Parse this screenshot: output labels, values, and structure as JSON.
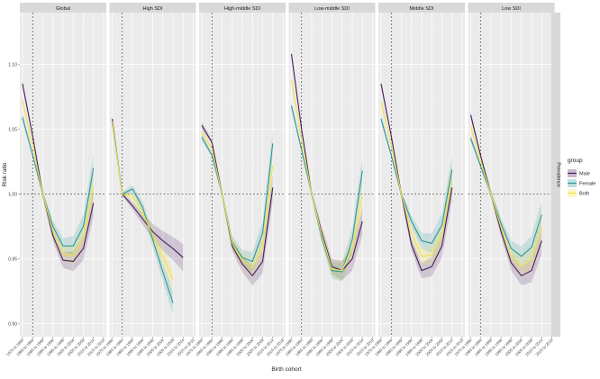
{
  "chart_data": {
    "type": "line",
    "ylabel": "Risk ratio",
    "xlabel": "Birth cohort",
    "strip_right": "Prevalence",
    "ylim": [
      0.89,
      1.14
    ],
    "y_ticks": [
      "0.90",
      "0.95",
      "1.00",
      "1.05",
      "1.10"
    ],
    "y_tick_values": [
      0.9,
      0.95,
      1.0,
      1.05,
      1.1
    ],
    "reference_y": 1.0,
    "reference_x_index": 1,
    "grid": true,
    "categories": [
      "1975 to 1980",
      "1980 to 1984",
      "1985 to 1989",
      "1990 to 1994",
      "1995 to 1999",
      "2000 to 2004",
      "2005 to 2009",
      "2010 to 2014",
      "2015 to 2019"
    ],
    "legend": {
      "title": "group",
      "position": "right",
      "entries": [
        "Male",
        "Female",
        "Both"
      ]
    },
    "colors": {
      "Male": "#4a1d5c",
      "Female": "#2a9a98",
      "Both": "#f2e24a"
    },
    "panels": [
      {
        "title": "Global",
        "x_labels": [
          "1975 to 1980",
          "1980 to 1984",
          "1985 to 1989",
          "1990 to 1994",
          "1995 to 1999",
          "2000 to 2004",
          "2005 to 2009",
          "2010 to 2014",
          "2015 to 2019"
        ],
        "series": [
          {
            "name": "Male",
            "values": [
              1.085,
              1.045,
              1.0,
              0.968,
              0.949,
              0.948,
              0.958,
              0.993,
              null
            ]
          },
          {
            "name": "Female",
            "values": [
              1.059,
              1.03,
              1.0,
              0.975,
              0.96,
              0.96,
              0.975,
              1.02,
              null
            ]
          },
          {
            "name": "Both",
            "values": [
              1.072,
              1.037,
              1.0,
              0.971,
              0.954,
              0.953,
              0.966,
              1.006,
              null
            ]
          }
        ]
      },
      {
        "title": "High SDI",
        "x_labels": [
          "1975 to 1980",
          "1980 to 1984",
          "1985 to 1989",
          "1990 to 1994",
          "1995 to 1999",
          "2000 to 2004",
          "2005 to 2009",
          "2010 to 2014",
          "2015 to 2019"
        ],
        "series": [
          {
            "name": "Male",
            "values": [
              1.058,
              1.0,
              0.991,
              0.981,
              0.971,
              0.964,
              0.958,
              0.951,
              null
            ]
          },
          {
            "name": "Female",
            "values": [
              1.055,
              1.0,
              1.004,
              0.99,
              0.965,
              0.94,
              0.916,
              null,
              null
            ]
          },
          {
            "name": "Both",
            "values": [
              1.056,
              1.0,
              0.998,
              0.986,
              0.968,
              0.952,
              0.934,
              null,
              null
            ]
          }
        ]
      },
      {
        "title": "High-middle SDI",
        "x_labels": [
          "1975 to 1980",
          "1980 to 1984",
          "1985 to 1989",
          "1990 to 1994",
          "1995 to 1999",
          "2000 to 2004",
          "2005 to 2009",
          "2010 to 2014",
          "2015 to 2019"
        ],
        "series": [
          {
            "name": "Male",
            "values": [
              1.053,
              1.04,
              1.0,
              0.96,
              0.946,
              0.937,
              0.948,
              1.005,
              null
            ]
          },
          {
            "name": "Female",
            "values": [
              1.044,
              1.03,
              1.0,
              0.963,
              0.951,
              0.948,
              0.97,
              1.039,
              null
            ]
          },
          {
            "name": "Both",
            "values": [
              1.048,
              1.035,
              1.0,
              0.962,
              0.949,
              0.943,
              0.959,
              1.022,
              null
            ]
          }
        ]
      },
      {
        "title": "Low-middle SDI",
        "x_labels": [
          "1975 to 1980",
          "1980 to 1984",
          "1985 to 1989",
          "1990 to 1994",
          "1995 to 1999",
          "2000 to 2004",
          "2005 to 2009",
          "2010 to 2014",
          "2015 to 2019"
        ],
        "series": [
          {
            "name": "Male",
            "values": [
              1.108,
              1.05,
              1.0,
              0.97,
              0.944,
              0.941,
              0.95,
              0.979,
              null
            ]
          },
          {
            "name": "Female",
            "values": [
              1.068,
              1.034,
              1.0,
              0.966,
              0.941,
              0.94,
              0.965,
              1.018,
              null
            ]
          },
          {
            "name": "Both",
            "values": [
              1.088,
              1.042,
              1.0,
              0.968,
              0.942,
              0.941,
              0.958,
              0.998,
              null
            ]
          }
        ]
      },
      {
        "title": "Middle SDI",
        "x_labels": [
          "1975 to 1980",
          "1980 to 1984",
          "1985 to 1989",
          "1990 to 1994",
          "1995 to 1999",
          "2000 to 2004",
          "2005 to 2009",
          "2010 to 2014",
          "2015 to 2019"
        ],
        "series": [
          {
            "name": "Male",
            "values": [
              1.085,
              1.045,
              1.0,
              0.961,
              0.941,
              0.944,
              0.96,
              1.005,
              null
            ]
          },
          {
            "name": "Female",
            "values": [
              1.058,
              1.03,
              1.0,
              0.979,
              0.964,
              0.962,
              0.976,
              1.019,
              null
            ]
          },
          {
            "name": "Both",
            "values": [
              1.071,
              1.038,
              1.0,
              0.97,
              0.952,
              0.953,
              0.968,
              1.012,
              null
            ]
          }
        ]
      },
      {
        "title": "Low SDI",
        "x_labels": [
          "1975 to 1980",
          "1980 to 1984",
          "1985 to 1989",
          "1990 to 1994",
          "1995 to 1999",
          "2000 to 2004",
          "2005 to 2009",
          "2010 to 2014",
          "2015 to 2019"
        ],
        "series": [
          {
            "name": "Male",
            "values": [
              1.061,
              1.029,
              1.0,
              0.971,
              0.947,
              0.937,
              0.941,
              0.964,
              null
            ]
          },
          {
            "name": "Female",
            "values": [
              1.043,
              1.021,
              1.0,
              0.977,
              0.958,
              0.952,
              0.959,
              0.984,
              null
            ]
          },
          {
            "name": "Both",
            "values": [
              1.052,
              1.025,
              1.0,
              0.974,
              0.952,
              0.944,
              0.95,
              0.974,
              null
            ]
          }
        ]
      }
    ]
  }
}
